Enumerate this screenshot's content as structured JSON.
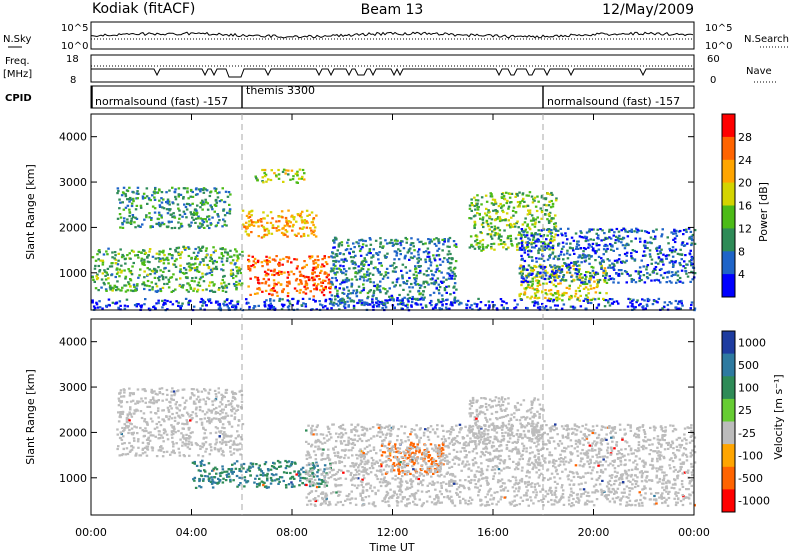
{
  "header": {
    "station": "Kodiak (fitACF)",
    "beam": "Beam 13",
    "date": "12/May/2009"
  },
  "noise_panel": {
    "left_label": "N.Sky",
    "right_label": "N.Search",
    "top_tick": "10^5",
    "bottom_tick": "10^0"
  },
  "freq_panel": {
    "left_label_1": "Freq.",
    "left_label_2": "[MHz]",
    "right_label": "Nave",
    "freq_ticks": [
      "18",
      "8"
    ],
    "nave_ticks": [
      "60",
      "0"
    ]
  },
  "cpid_panel": {
    "label": "CPID",
    "modes": [
      "normalsound (fast) -157",
      "themis 3300",
      "normalsound (fast) -157"
    ],
    "colors": {
      "line": "#000000",
      "dash": "#aaaaaa"
    }
  },
  "power_panel": {
    "ylabel": "Slant Range [km]",
    "colorbar_label": "Power [dB]",
    "colorbar_ticks": [
      "28",
      "24",
      "20",
      "16",
      "12",
      "8",
      "4"
    ],
    "colorbar_colors": [
      "#ff0000",
      "#ff6400",
      "#ffa500",
      "#d4d400",
      "#4cbb17",
      "#2e8b57",
      "#1e64c8",
      "#0000ff"
    ]
  },
  "velocity_panel": {
    "ylabel": "Slant Range [km]",
    "colorbar_label": "Velocity [m s⁻¹]",
    "colorbar_ticks": [
      "1000",
      "500",
      "100",
      "25",
      "-25",
      "-100",
      "-500",
      "-1000"
    ],
    "colorbar_colors": [
      "#1e3ca0",
      "#2e7aa0",
      "#2e8b57",
      "#66cc33",
      "#bcbcbc",
      "#ffa500",
      "#ff6400",
      "#ff0000"
    ]
  },
  "time_axis": {
    "label": "Time UT",
    "ticks": [
      "00:00",
      "04:00",
      "08:00",
      "12:00",
      "16:00",
      "20:00",
      "00:00"
    ]
  },
  "chart_data": {
    "type": "heatmap",
    "title": "Beam 13",
    "xlabel": "Time UT",
    "ylabel": "Slant Range [km]",
    "x_range_hours": [
      0,
      24
    ],
    "ylim": [
      180,
      4500
    ],
    "yticks": [
      1000,
      2000,
      3000,
      4000
    ],
    "mode_change_times_hours": [
      6.0,
      18.0
    ],
    "power_regions": [
      {
        "t": [
          6.2,
          9.5
        ],
        "r": [
          500,
          1400
        ],
        "level_db": 28
      },
      {
        "t": [
          6.0,
          9.0
        ],
        "r": [
          1800,
          2400
        ],
        "level_db": 24
      },
      {
        "t": [
          6.5,
          8.5
        ],
        "r": [
          3000,
          3300
        ],
        "level_db": 18
      },
      {
        "t": [
          1.0,
          5.5
        ],
        "r": [
          2000,
          2900
        ],
        "level_db": 12
      },
      {
        "t": [
          0.0,
          6.0
        ],
        "r": [
          600,
          1600
        ],
        "level_db": 14
      },
      {
        "t": [
          9.5,
          14.5
        ],
        "r": [
          300,
          1800
        ],
        "level_db": 10
      },
      {
        "t": [
          15.0,
          18.5
        ],
        "r": [
          1500,
          2800
        ],
        "level_db": 16
      },
      {
        "t": [
          17.0,
          20.5
        ],
        "r": [
          400,
          1200
        ],
        "level_db": 20
      },
      {
        "t": [
          17.0,
          24.0
        ],
        "r": [
          800,
          2000
        ],
        "level_db": 8
      },
      {
        "t": [
          0.0,
          24.0
        ],
        "r": [
          200,
          450
        ],
        "level_db": 6
      }
    ],
    "velocity_regions": [
      {
        "t": [
          4.0,
          9.5
        ],
        "r": [
          800,
          1400
        ],
        "velocity": 100
      },
      {
        "t": [
          11.5,
          14.0
        ],
        "r": [
          1100,
          1800
        ],
        "velocity": -200
      },
      {
        "t": [
          1.0,
          6.0
        ],
        "r": [
          1500,
          3000
        ],
        "velocity": 0
      },
      {
        "t": [
          8.5,
          24.0
        ],
        "r": [
          400,
          2200
        ],
        "velocity": 0
      },
      {
        "t": [
          15.0,
          18.0
        ],
        "r": [
          1800,
          2800
        ],
        "velocity": 0
      }
    ]
  }
}
